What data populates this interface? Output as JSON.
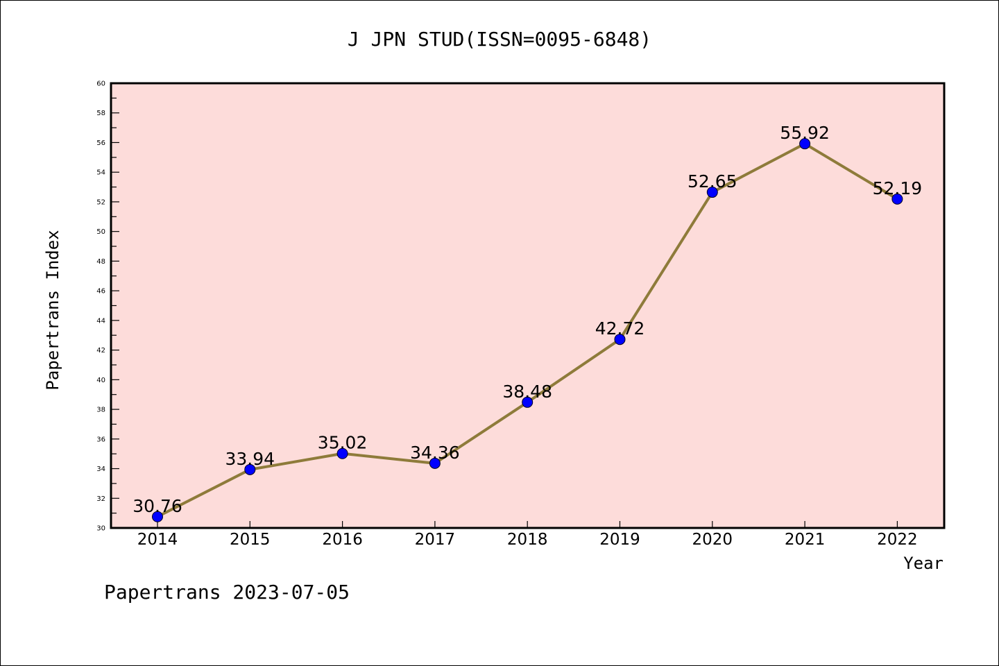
{
  "chart_data": {
    "type": "line",
    "title": "J JPN STUD(ISSN=0095-6848)",
    "xlabel": "Year",
    "ylabel": "Papertrans Index",
    "categories": [
      "2014",
      "2015",
      "2016",
      "2017",
      "2018",
      "2019",
      "2020",
      "2021",
      "2022"
    ],
    "series": [
      {
        "values": [
          30.76,
          33.94,
          35.02,
          34.36,
          38.48,
          42.72,
          52.65,
          55.92,
          52.19
        ],
        "labels": [
          "30.76",
          "33.94",
          "35.02",
          "34.36",
          "38.48",
          "42.72",
          "52.65",
          "55.92",
          "52.19"
        ],
        "line_color": "#8e7b3a",
        "marker_color": "#0000ff"
      }
    ],
    "ylim": [
      30,
      60
    ],
    "yticks": [
      "30",
      "32",
      "34",
      "36",
      "38",
      "40",
      "42",
      "44",
      "46",
      "48",
      "50",
      "52",
      "54",
      "56",
      "58",
      "60"
    ],
    "plot_background": "#fddcda",
    "grid": false,
    "legend": "none"
  },
  "footer": "Papertrans 2023-07-05"
}
